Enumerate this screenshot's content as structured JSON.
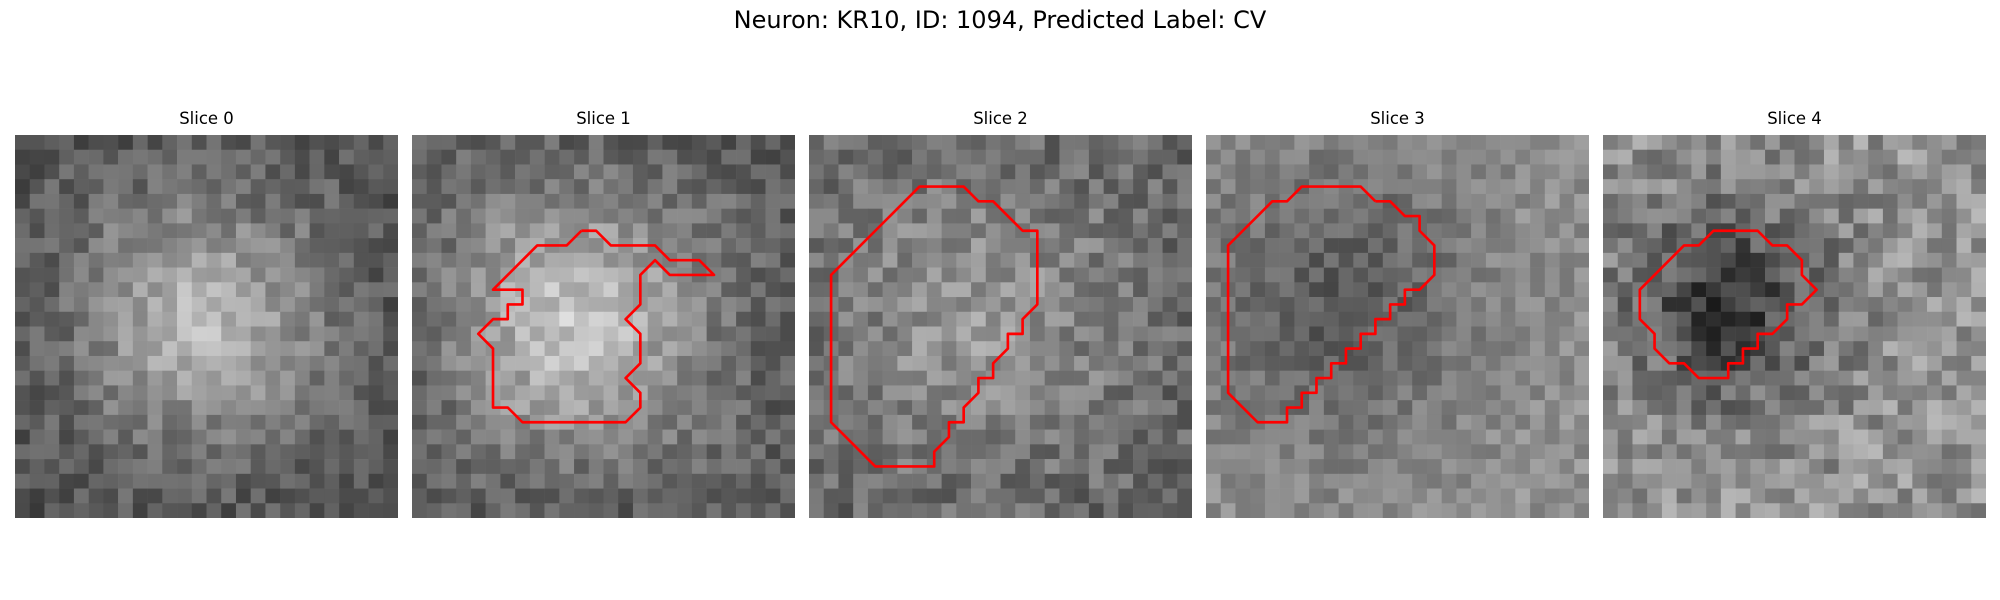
{
  "figure": {
    "title": "Neuron: KR10, ID: 1094, Predicted Label: CV"
  },
  "contour_color": "#ff0000",
  "slices": [
    {
      "title": "Slice 0",
      "contour": []
    },
    {
      "title": "Slice 1",
      "contour": [
        [
          11.5,
          6.5
        ],
        [
          12.5,
          6.5
        ],
        [
          13.5,
          7.5
        ],
        [
          15.5,
          7.5
        ],
        [
          16.5,
          7.5
        ],
        [
          17.5,
          8.5
        ],
        [
          19.5,
          8.5
        ],
        [
          20.5,
          9.5
        ],
        [
          19.5,
          9.5
        ],
        [
          17.5,
          9.5
        ],
        [
          16.5,
          8.5
        ],
        [
          15.5,
          9.5
        ],
        [
          15.5,
          11.5
        ],
        [
          14.5,
          12.5
        ],
        [
          15.5,
          13.5
        ],
        [
          15.5,
          15.5
        ],
        [
          14.5,
          16.5
        ],
        [
          15.5,
          17.5
        ],
        [
          15.5,
          18.5
        ],
        [
          14.5,
          19.5
        ],
        [
          13.5,
          19.5
        ],
        [
          7.5,
          19.5
        ],
        [
          6.5,
          18.5
        ],
        [
          5.5,
          18.5
        ],
        [
          5.5,
          16.5
        ],
        [
          5.5,
          14.5
        ],
        [
          4.5,
          13.5
        ],
        [
          5.5,
          12.5
        ],
        [
          6.5,
          12.5
        ],
        [
          6.5,
          11.5
        ],
        [
          7.5,
          11.5
        ],
        [
          7.5,
          10.5
        ],
        [
          6.5,
          10.5
        ],
        [
          5.5,
          10.5
        ],
        [
          6.5,
          9.5
        ],
        [
          7.5,
          8.5
        ],
        [
          8.5,
          7.5
        ],
        [
          10.5,
          7.5
        ],
        [
          11.5,
          6.5
        ]
      ]
    },
    {
      "title": "Slice 2",
      "contour": [
        [
          8.5,
          3.5
        ],
        [
          10.5,
          3.5
        ],
        [
          11.5,
          4.5
        ],
        [
          12.5,
          4.5
        ],
        [
          13.5,
          5.5
        ],
        [
          14.5,
          6.5
        ],
        [
          15.5,
          6.5
        ],
        [
          15.5,
          8.5
        ],
        [
          15.5,
          9.5
        ],
        [
          15.5,
          11.5
        ],
        [
          14.5,
          12.5
        ],
        [
          14.5,
          13.5
        ],
        [
          13.5,
          13.5
        ],
        [
          13.5,
          14.5
        ],
        [
          12.5,
          15.5
        ],
        [
          12.5,
          16.5
        ],
        [
          11.5,
          16.5
        ],
        [
          11.5,
          17.5
        ],
        [
          10.5,
          18.5
        ],
        [
          10.5,
          19.5
        ],
        [
          9.5,
          19.5
        ],
        [
          9.5,
          20.5
        ],
        [
          8.5,
          21.5
        ],
        [
          8.5,
          22.5
        ],
        [
          7.5,
          22.5
        ],
        [
          6.5,
          22.5
        ],
        [
          4.5,
          22.5
        ],
        [
          3.5,
          21.5
        ],
        [
          2.5,
          20.5
        ],
        [
          1.5,
          19.5
        ],
        [
          1.5,
          17.5
        ],
        [
          1.5,
          15.5
        ],
        [
          1.5,
          13.5
        ],
        [
          1.5,
          11.5
        ],
        [
          1.5,
          9.5
        ],
        [
          2.5,
          8.5
        ],
        [
          3.5,
          7.5
        ],
        [
          4.5,
          6.5
        ],
        [
          5.5,
          5.5
        ],
        [
          6.5,
          4.5
        ],
        [
          7.5,
          3.5
        ],
        [
          8.5,
          3.5
        ]
      ]
    },
    {
      "title": "Slice 3",
      "contour": [
        [
          11.5,
          4.5
        ],
        [
          12.5,
          4.5
        ],
        [
          13.5,
          5.5
        ],
        [
          14.5,
          5.5
        ],
        [
          14.5,
          6.5
        ],
        [
          15.5,
          7.5
        ],
        [
          15.5,
          9.5
        ],
        [
          14.5,
          10.5
        ],
        [
          13.5,
          10.5
        ],
        [
          13.5,
          11.5
        ],
        [
          12.5,
          11.5
        ],
        [
          12.5,
          12.5
        ],
        [
          11.5,
          12.5
        ],
        [
          11.5,
          13.5
        ],
        [
          10.5,
          13.5
        ],
        [
          10.5,
          14.5
        ],
        [
          9.5,
          14.5
        ],
        [
          9.5,
          15.5
        ],
        [
          8.5,
          15.5
        ],
        [
          8.5,
          16.5
        ],
        [
          7.5,
          16.5
        ],
        [
          7.5,
          17.5
        ],
        [
          6.5,
          17.5
        ],
        [
          6.5,
          18.5
        ],
        [
          5.5,
          18.5
        ],
        [
          5.5,
          19.5
        ],
        [
          4.5,
          19.5
        ],
        [
          3.5,
          19.5
        ],
        [
          2.5,
          18.5
        ],
        [
          1.5,
          17.5
        ],
        [
          1.5,
          15.5
        ],
        [
          1.5,
          13.5
        ],
        [
          1.5,
          11.5
        ],
        [
          1.5,
          9.5
        ],
        [
          1.5,
          7.5
        ],
        [
          2.5,
          6.5
        ],
        [
          3.5,
          5.5
        ],
        [
          4.5,
          4.5
        ],
        [
          5.5,
          4.5
        ],
        [
          6.5,
          3.5
        ],
        [
          8.5,
          3.5
        ],
        [
          10.5,
          3.5
        ],
        [
          11.5,
          4.5
        ]
      ]
    },
    {
      "title": "Slice 4",
      "contour": [
        [
          9.5,
          6.5
        ],
        [
          10.5,
          6.5
        ],
        [
          11.5,
          7.5
        ],
        [
          12.5,
          7.5
        ],
        [
          13.5,
          8.5
        ],
        [
          13.5,
          9.5
        ],
        [
          14.5,
          10.5
        ],
        [
          13.5,
          11.5
        ],
        [
          12.5,
          11.5
        ],
        [
          12.5,
          12.5
        ],
        [
          11.5,
          13.5
        ],
        [
          10.5,
          13.5
        ],
        [
          10.5,
          14.5
        ],
        [
          9.5,
          14.5
        ],
        [
          9.5,
          15.5
        ],
        [
          8.5,
          15.5
        ],
        [
          8.5,
          16.5
        ],
        [
          7.5,
          16.5
        ],
        [
          6.5,
          16.5
        ],
        [
          5.5,
          15.5
        ],
        [
          4.5,
          15.5
        ],
        [
          3.5,
          14.5
        ],
        [
          3.5,
          13.5
        ],
        [
          2.5,
          12.5
        ],
        [
          2.5,
          10.5
        ],
        [
          3.5,
          9.5
        ],
        [
          4.5,
          8.5
        ],
        [
          5.5,
          7.5
        ],
        [
          6.5,
          7.5
        ],
        [
          7.5,
          6.5
        ],
        [
          8.5,
          6.5
        ],
        [
          9.5,
          6.5
        ]
      ]
    }
  ]
}
